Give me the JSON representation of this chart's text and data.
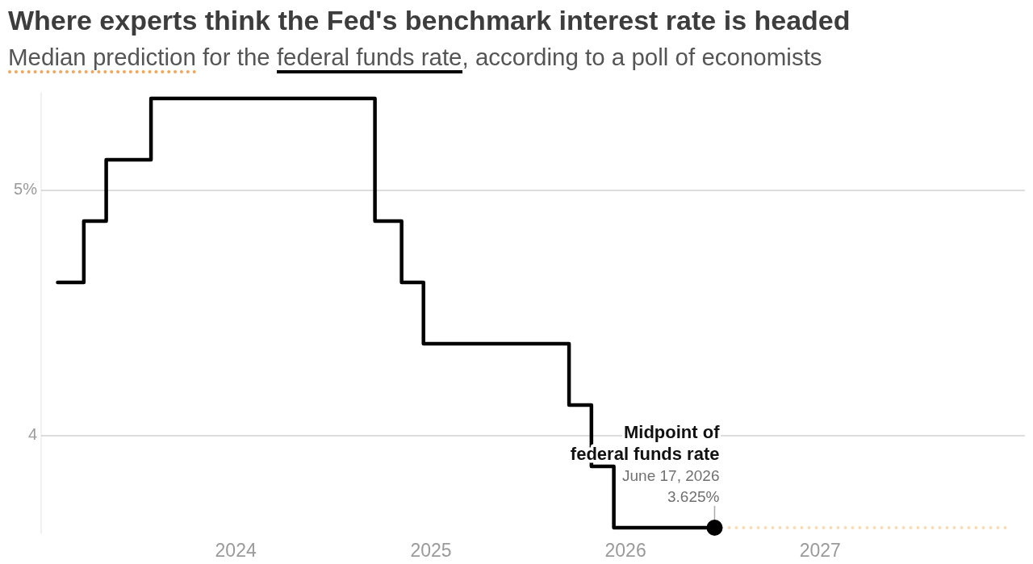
{
  "chart_data": {
    "type": "step",
    "title": "Where experts think the Fed's benchmark interest rate is headed",
    "subtitle": "Median prediction for the federal funds rate, according to a poll of economists",
    "series": [
      {
        "name": "Midpoint of federal funds rate",
        "color": "#000000",
        "line_style": "solid",
        "x": [
          "2023-02-01",
          "2023-03-22",
          "2023-05-03",
          "2023-07-26",
          "2024-09-18",
          "2024-11-07",
          "2024-12-18",
          "2025-09-17",
          "2025-10-29",
          "2025-12-10",
          "2026-06-17"
        ],
        "values": [
          4.625,
          4.875,
          5.125,
          5.375,
          4.875,
          4.625,
          4.375,
          4.125,
          3.875,
          3.625,
          3.625
        ]
      },
      {
        "color": "#f9dcb5",
        "line_style": "dotted",
        "x": [
          "2026-06-17",
          "2027-12-20"
        ],
        "values": [
          3.625,
          3.625
        ]
      }
    ],
    "xlim": [
      "2023-01-01",
      "2028-01-20"
    ],
    "xticks": [
      "2024",
      "2025",
      "2026",
      "2027"
    ],
    "ylim": [
      3.6,
      5.4
    ],
    "yticks": [
      4,
      {
        "value": 5,
        "label": "5%"
      }
    ],
    "grid": "y",
    "annotations": [
      {
        "text": "June 17, 2026",
        "x": "2026-06-17",
        "y": 3.625
      },
      {
        "text": "3.625%",
        "x": "2026-06-17",
        "y": 3.625
      }
    ]
  }
}
